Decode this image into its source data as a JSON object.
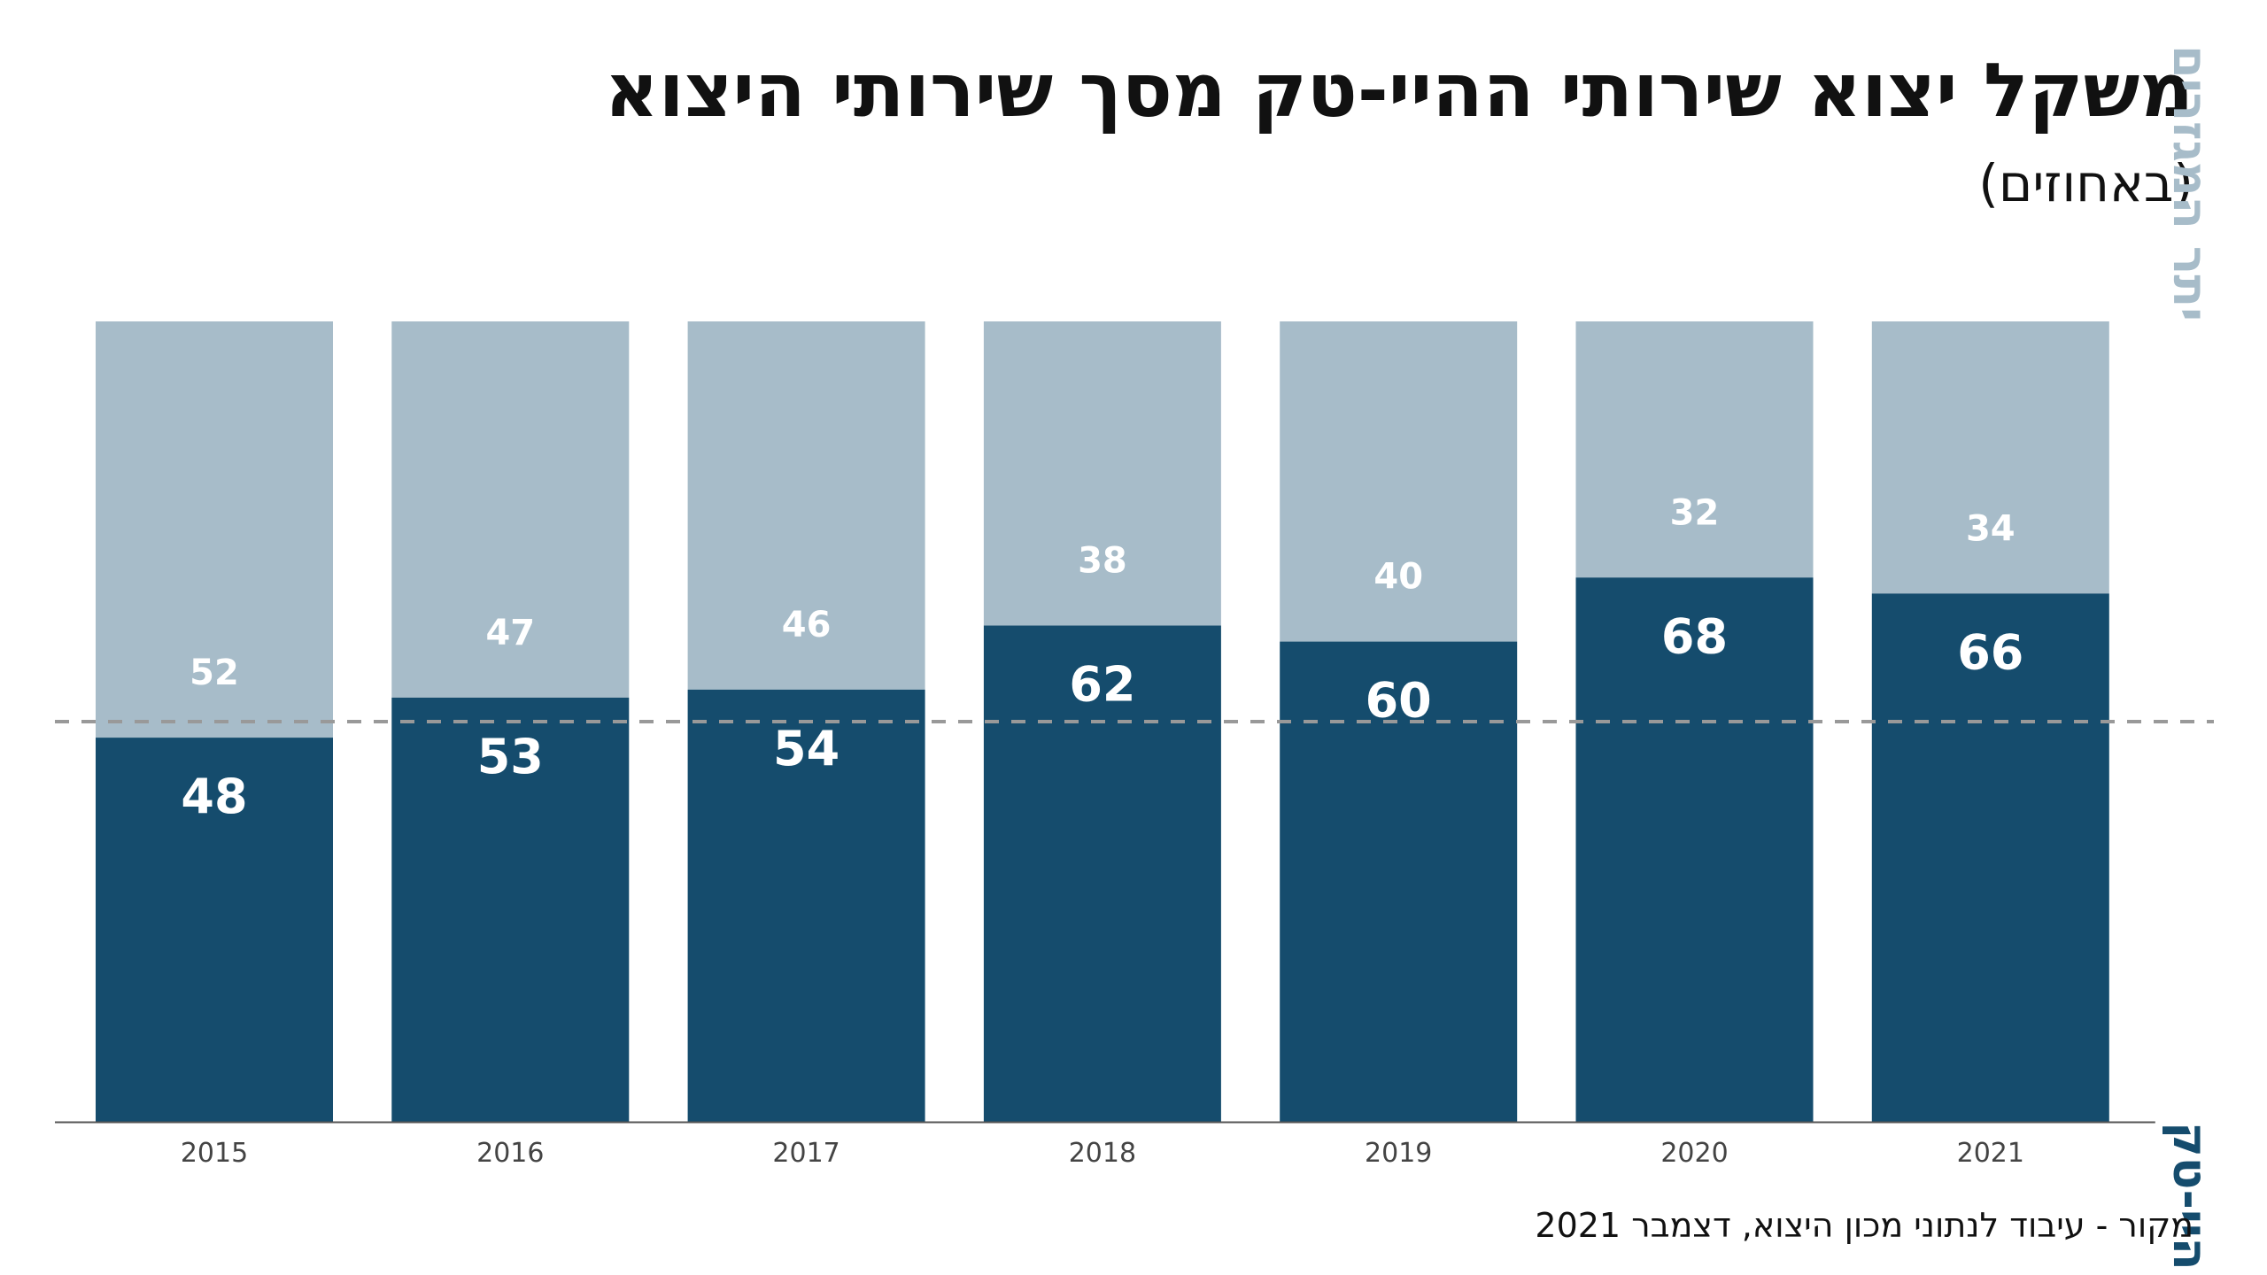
{
  "title": "משקל יצוא שירותי ההיי-טק מסך שירותי היצוא",
  "subtitle": "(באחוזים)",
  "source": "מקור - עיבוד לנתוני מכון היצוא, דצמבר 2021",
  "colors": {
    "high_tech": "#154c6d",
    "other_services": "#a7bcc9",
    "reference_line": "#999999",
    "axis": "#555555"
  },
  "chart_data": {
    "type": "bar",
    "stacked": true,
    "percent_stacked": true,
    "categories": [
      "2015",
      "2016",
      "2017",
      "2018",
      "2019",
      "2020",
      "2021"
    ],
    "series": [
      {
        "name": "היי-טק",
        "values": [
          48,
          53,
          54,
          62,
          60,
          68,
          66
        ]
      },
      {
        "name": "יתר המגזרים",
        "values": [
          52,
          47,
          46,
          38,
          40,
          32,
          34
        ]
      }
    ],
    "ylim": [
      0,
      100
    ],
    "reference_line": 50,
    "grid": false,
    "legend": "right-vertical"
  }
}
